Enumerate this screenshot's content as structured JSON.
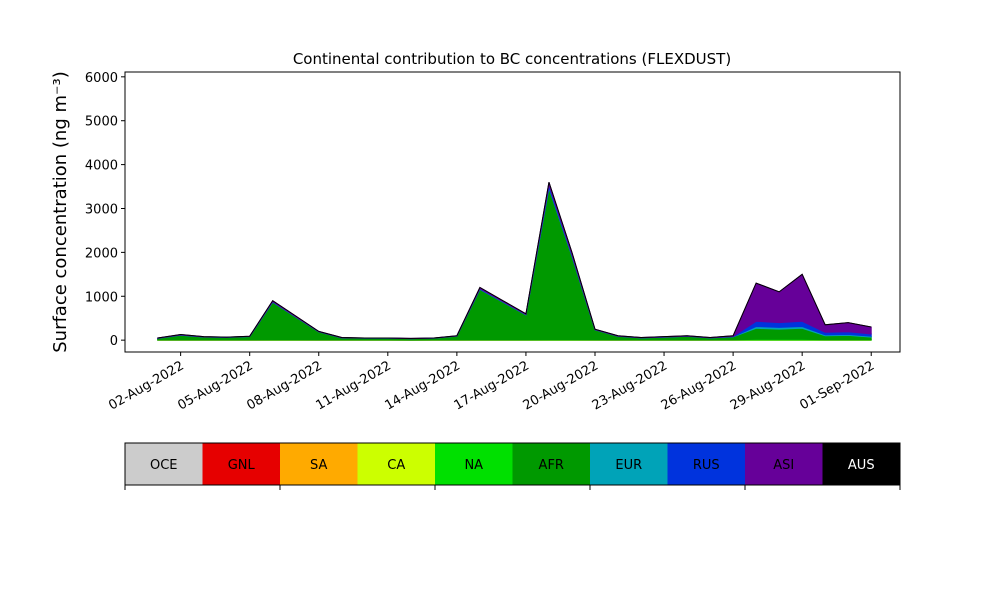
{
  "chart_data": {
    "type": "stacked_area",
    "title": "Continental contribution to BC concentrations (FLEXDUST)",
    "y_label": "Surface concentration (ng m⁻³)",
    "x": [
      "2022-08-01",
      "2022-08-02",
      "2022-08-03",
      "2022-08-04",
      "2022-08-05",
      "2022-08-06",
      "2022-08-07",
      "2022-08-08",
      "2022-08-09",
      "2022-08-10",
      "2022-08-11",
      "2022-08-12",
      "2022-08-13",
      "2022-08-14",
      "2022-08-15",
      "2022-08-16",
      "2022-08-17",
      "2022-08-18",
      "2022-08-19",
      "2022-08-20",
      "2022-08-21",
      "2022-08-22",
      "2022-08-23",
      "2022-08-24",
      "2022-08-25",
      "2022-08-26",
      "2022-08-27",
      "2022-08-28",
      "2022-08-29",
      "2022-08-30",
      "2022-08-31",
      "2022-09-01"
    ],
    "xlim": [
      "2022-07-30T14:00",
      "2022-09-02T06:00"
    ],
    "xticks": [
      {
        "value": "2022-08-02",
        "label": "02-Aug-2022"
      },
      {
        "value": "2022-08-05",
        "label": "05-Aug-2022"
      },
      {
        "value": "2022-08-08",
        "label": "08-Aug-2022"
      },
      {
        "value": "2022-08-11",
        "label": "11-Aug-2022"
      },
      {
        "value": "2022-08-14",
        "label": "14-Aug-2022"
      },
      {
        "value": "2022-08-17",
        "label": "17-Aug-2022"
      },
      {
        "value": "2022-08-20",
        "label": "20-Aug-2022"
      },
      {
        "value": "2022-08-23",
        "label": "23-Aug-2022"
      },
      {
        "value": "2022-08-26",
        "label": "26-Aug-2022"
      },
      {
        "value": "2022-08-29",
        "label": "29-Aug-2022"
      },
      {
        "value": "2022-09-01",
        "label": "01-Sep-2022"
      }
    ],
    "ylim": [
      -270,
      6110
    ],
    "yticks": [
      0,
      1000,
      2000,
      3000,
      4000,
      5000,
      6000
    ],
    "series": [
      {
        "name": "OCE",
        "color": "#cccccc",
        "values": [
          0,
          0,
          0,
          0,
          0,
          0,
          0,
          0,
          0,
          0,
          0,
          0,
          0,
          0,
          0,
          0,
          0,
          0,
          0,
          0,
          0,
          0,
          0,
          0,
          0,
          0,
          0,
          0,
          0,
          0,
          0,
          0
        ]
      },
      {
        "name": "GNL",
        "color": "#e60000",
        "values": [
          0,
          0,
          0,
          0,
          0,
          0,
          0,
          0,
          0,
          0,
          0,
          0,
          0,
          0,
          0,
          0,
          0,
          0,
          0,
          0,
          0,
          0,
          0,
          0,
          0,
          0,
          0,
          0,
          0,
          0,
          0,
          0
        ]
      },
      {
        "name": "SA",
        "color": "#ffaa00",
        "values": [
          0,
          0,
          0,
          0,
          0,
          0,
          0,
          0,
          0,
          0,
          0,
          0,
          0,
          0,
          0,
          0,
          0,
          0,
          0,
          0,
          0,
          0,
          0,
          0,
          0,
          0,
          0,
          0,
          0,
          0,
          0,
          0
        ]
      },
      {
        "name": "CA",
        "color": "#ccff00",
        "values": [
          0,
          0,
          0,
          0,
          0,
          0,
          0,
          0,
          0,
          0,
          0,
          0,
          0,
          0,
          0,
          0,
          0,
          0,
          0,
          0,
          0,
          0,
          0,
          0,
          0,
          0,
          0,
          0,
          0,
          0,
          0,
          0
        ]
      },
      {
        "name": "NA",
        "color": "#00e000",
        "values": [
          2,
          3,
          2,
          2,
          2,
          5,
          5,
          3,
          2,
          2,
          2,
          1,
          2,
          2,
          5,
          5,
          5,
          10,
          10,
          5,
          3,
          2,
          2,
          3,
          2,
          5,
          20,
          20,
          20,
          10,
          10,
          10
        ]
      },
      {
        "name": "AFR",
        "color": "#009900",
        "values": [
          40,
          110,
          70,
          60,
          80,
          860,
          520,
          185,
          50,
          42,
          42,
          33,
          42,
          90,
          1150,
          860,
          570,
          3450,
          1900,
          230,
          85,
          50,
          65,
          85,
          50,
          70,
          250,
          230,
          250,
          90,
          100,
          60
        ]
      },
      {
        "name": "EUR",
        "color": "#00a3b8",
        "values": [
          1,
          2,
          1,
          1,
          1,
          5,
          3,
          2,
          1,
          1,
          1,
          1,
          1,
          1,
          5,
          5,
          3,
          20,
          10,
          2,
          1,
          1,
          1,
          1,
          1,
          3,
          40,
          40,
          40,
          20,
          20,
          20
        ]
      },
      {
        "name": "RUS",
        "color": "#0033dd",
        "values": [
          2,
          5,
          2,
          2,
          2,
          10,
          7,
          3,
          2,
          1,
          1,
          1,
          1,
          2,
          15,
          10,
          7,
          60,
          30,
          3,
          2,
          2,
          3,
          3,
          2,
          7,
          120,
          110,
          120,
          60,
          60,
          50
        ]
      },
      {
        "name": "ASI",
        "color": "#660099",
        "values": [
          5,
          10,
          5,
          5,
          5,
          20,
          15,
          7,
          5,
          4,
          4,
          4,
          4,
          5,
          25,
          20,
          15,
          60,
          50,
          10,
          9,
          5,
          9,
          8,
          5,
          15,
          870,
          700,
          1070,
          170,
          210,
          160
        ]
      },
      {
        "name": "AUS",
        "color": "#000000",
        "values": [
          0,
          0,
          0,
          0,
          0,
          0,
          0,
          0,
          0,
          0,
          0,
          0,
          0,
          0,
          0,
          0,
          0,
          0,
          0,
          0,
          0,
          0,
          0,
          0,
          0,
          0,
          0,
          0,
          0,
          0,
          0,
          0
        ]
      }
    ]
  }
}
